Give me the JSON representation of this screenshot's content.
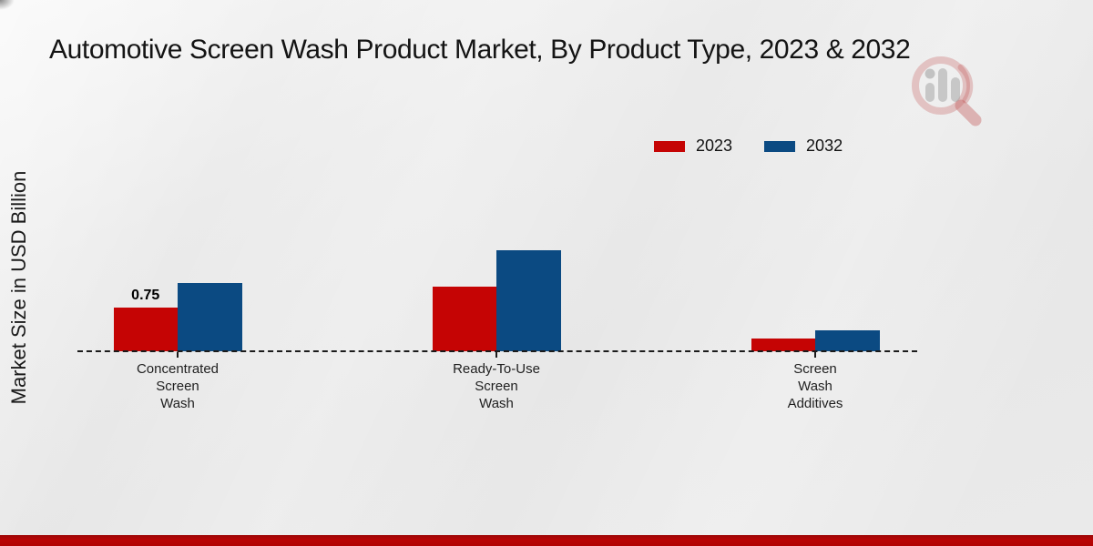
{
  "title": "Automotive Screen Wash Product Market, By Product Type, 2023 & 2032",
  "ylabel": "Market Size in USD Billion",
  "colors": {
    "series_2023": "#c50404",
    "series_2032": "#0b4a82",
    "bottom_accent_band": "#b20404",
    "axis_line": "#1b1b1b",
    "text": "#141414"
  },
  "legend": {
    "items": [
      {
        "label": "2023",
        "color": "#c50404"
      },
      {
        "label": "2032",
        "color": "#0b4a82"
      }
    ]
  },
  "watermark_icon": "market-research-magnifier-logo",
  "chart_data": {
    "type": "bar",
    "title": "Automotive Screen Wash Product Market, By Product Type, 2023 & 2032",
    "xlabel": "",
    "ylabel": "Market Size in USD Billion",
    "categories": [
      "Concentrated Screen Wash",
      "Ready-To-Use Screen Wash",
      "Screen Wash Additives"
    ],
    "category_lines": [
      [
        "Concentrated",
        "Screen",
        "Wash"
      ],
      [
        "Ready-To-Use",
        "Screen",
        "Wash"
      ],
      [
        "Screen",
        "Wash",
        "Additives"
      ]
    ],
    "series": [
      {
        "name": "2023",
        "color": "#c50404",
        "values": [
          0.75,
          1.12,
          0.22
        ]
      },
      {
        "name": "2032",
        "color": "#0b4a82",
        "values": [
          1.18,
          1.75,
          0.36
        ]
      }
    ],
    "data_labels": [
      {
        "series_index": 0,
        "category_index": 0,
        "text": "0.75"
      }
    ],
    "ylim": [
      0,
      2
    ],
    "grid": false,
    "yaxis_ticks_visible": false,
    "baseline_style": "dashed",
    "legend_position": "top-right"
  }
}
